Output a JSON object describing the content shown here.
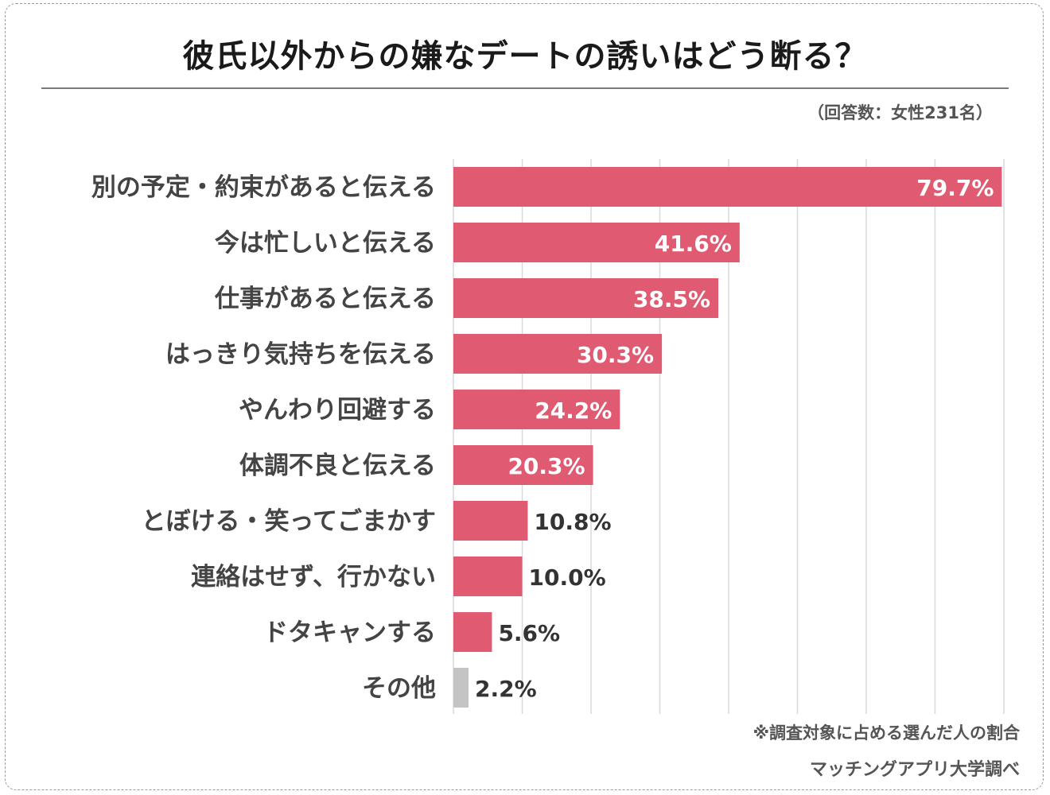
{
  "header": {
    "title": "彼氏以外からの嫌なデートの誘いはどう断る？",
    "respondents": "（回答数：女性231名）"
  },
  "footer": {
    "note": "※調査対象に占める選んだ人の割合",
    "source": "マッチングアプリ大学調べ"
  },
  "colors": {
    "bar": "#e05a72",
    "other_bar": "#c4c4c4",
    "grid": "#d9d9d9"
  },
  "chart_data": {
    "type": "bar",
    "orientation": "horizontal",
    "title": "彼氏以外からの嫌なデートの誘いはどう断る？",
    "categories": [
      "別の予定・約束があると伝える",
      "今は忙しいと伝える",
      "仕事があると伝える",
      "はっきり気持ちを伝える",
      "やんわり回避する",
      "体調不良と伝える",
      "とぼける・笑ってごまかす",
      "連絡はせず、行かない",
      "ドタキャンする",
      "その他"
    ],
    "values": [
      79.7,
      41.6,
      38.5,
      30.3,
      24.2,
      20.3,
      10.8,
      10.0,
      5.6,
      2.2
    ],
    "value_labels": [
      "79.7%",
      "41.6%",
      "38.5%",
      "30.3%",
      "24.2%",
      "20.3%",
      "10.8%",
      "10.0%",
      "5.6%",
      "2.2%"
    ],
    "unit": "%",
    "xlim": [
      0,
      80
    ],
    "grid": true,
    "grid_step": 10
  }
}
